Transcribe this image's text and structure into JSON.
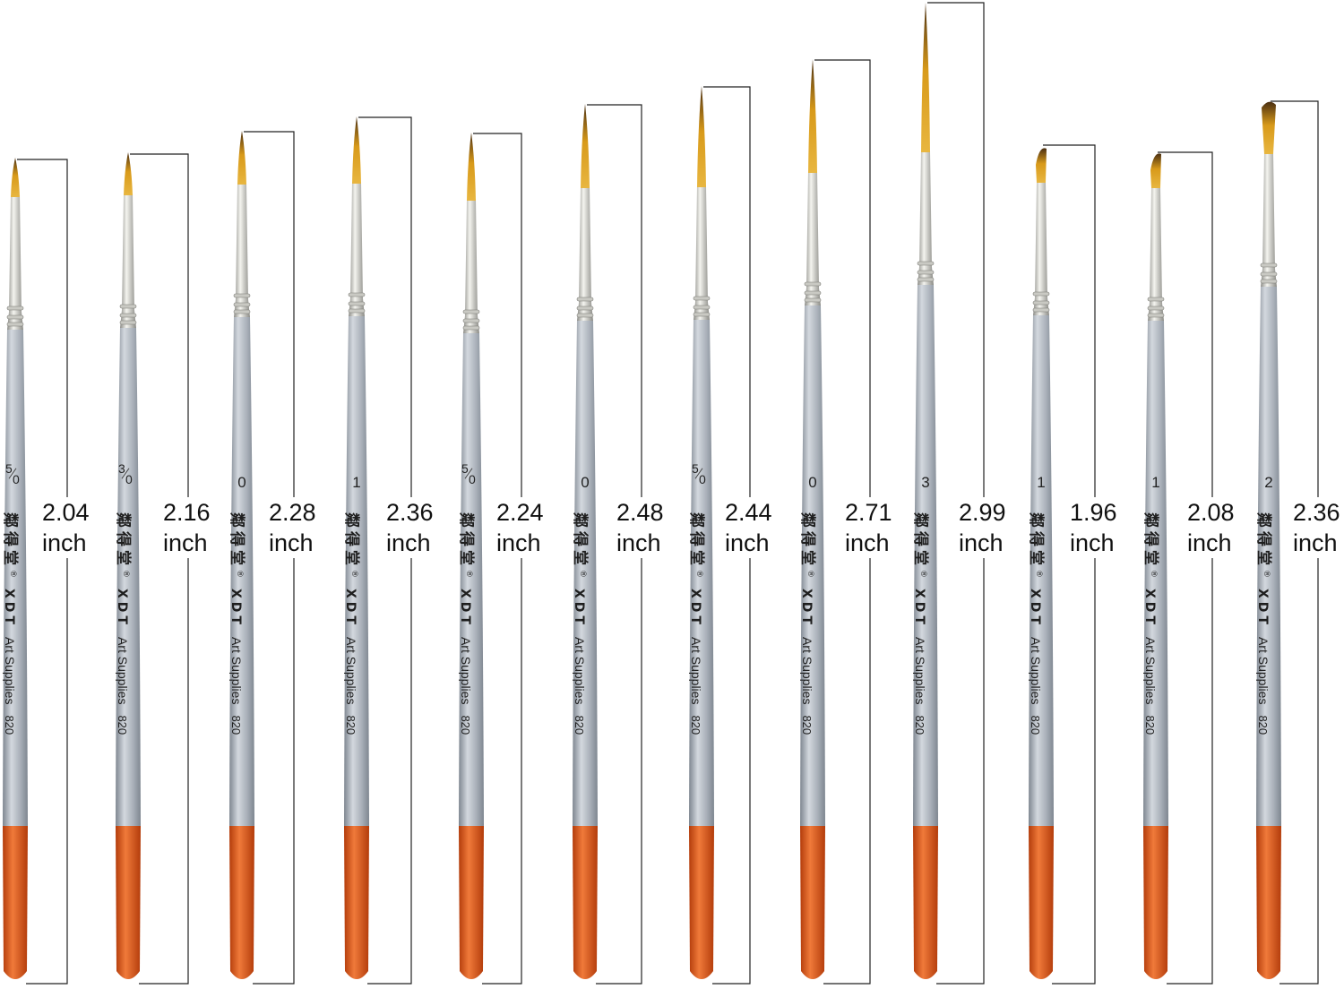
{
  "colors": {
    "handle": "#a9b0b9",
    "handle_light": "#d3d8de",
    "handle_dark": "#7e8690",
    "handle_end": "#e0591b",
    "handle_end_dark": "#b33c0b",
    "ferrule": "#d9d9d4",
    "ferrule_dark": "#8b8b86",
    "bristle": "#d89a1a",
    "bristle_tip": "#4a2f12",
    "measure_line": "#222222"
  },
  "brushes": [
    {
      "size": "5/0",
      "length_value": "2.04",
      "length_unit": "inch",
      "brand_cn": "鄰得堂",
      "brand_en": "XDT",
      "brand_desc": "Art Supplies",
      "model": "820",
      "tip_shape": "round",
      "brush_length_inch": 2.04
    },
    {
      "size": "3/0",
      "length_value": "2.16",
      "length_unit": "inch",
      "brand_cn": "鄰得堂",
      "brand_en": "XDT",
      "brand_desc": "Art Supplies",
      "model": "820",
      "tip_shape": "round",
      "brush_length_inch": 2.16
    },
    {
      "size": "0",
      "length_value": "2.28",
      "length_unit": "inch",
      "brand_cn": "鄰得堂",
      "brand_en": "XDT",
      "brand_desc": "Art Supplies",
      "model": "820",
      "tip_shape": "round",
      "brush_length_inch": 2.28
    },
    {
      "size": "1",
      "length_value": "2.36",
      "length_unit": "inch",
      "brand_cn": "鄰得堂",
      "brand_en": "XDT",
      "brand_desc": "Art Supplies",
      "model": "820",
      "tip_shape": "round",
      "brush_length_inch": 2.36
    },
    {
      "size": "5/0",
      "length_value": "2.24",
      "length_unit": "inch",
      "brand_cn": "鄰得堂",
      "brand_en": "XDT",
      "brand_desc": "Art Supplies",
      "model": "820",
      "tip_shape": "liner",
      "brush_length_inch": 2.24
    },
    {
      "size": "0",
      "length_value": "2.48",
      "length_unit": "inch",
      "brand_cn": "鄰得堂",
      "brand_en": "XDT",
      "brand_desc": "Art Supplies",
      "model": "820",
      "tip_shape": "liner",
      "brush_length_inch": 2.48
    },
    {
      "size": "5/0",
      "length_value": "2.44",
      "length_unit": "inch",
      "brand_cn": "鄰得堂",
      "brand_en": "XDT",
      "brand_desc": "Art Supplies",
      "model": "820",
      "tip_shape": "liner",
      "brush_length_inch": 2.44
    },
    {
      "size": "0",
      "length_value": "2.71",
      "length_unit": "inch",
      "brand_cn": "鄰得堂",
      "brand_en": "XDT",
      "brand_desc": "Art Supplies",
      "model": "820",
      "tip_shape": "liner",
      "brush_length_inch": 2.71
    },
    {
      "size": "3",
      "length_value": "2.99",
      "length_unit": "inch",
      "brand_cn": "鄰得堂",
      "brand_en": "XDT",
      "brand_desc": "Art Supplies",
      "model": "820",
      "tip_shape": "liner",
      "brush_length_inch": 2.99
    },
    {
      "size": "1",
      "length_value": "1.96",
      "length_unit": "inch",
      "brand_cn": "鄰得堂",
      "brand_en": "XDT",
      "brand_desc": "Art Supplies",
      "model": "820",
      "tip_shape": "angle",
      "brush_length_inch": 1.96
    },
    {
      "size": "1",
      "length_value": "2.08",
      "length_unit": "inch",
      "brand_cn": "鄰得堂",
      "brand_en": "XDT",
      "brand_desc": "Art Supplies",
      "model": "820",
      "tip_shape": "angle",
      "brush_length_inch": 2.08
    },
    {
      "size": "2",
      "length_value": "2.36",
      "length_unit": "inch",
      "brand_cn": "鄰得堂",
      "brand_en": "XDT",
      "brand_desc": "Art Supplies",
      "model": "820",
      "tip_shape": "flat",
      "brush_length_inch": 2.36
    }
  ]
}
